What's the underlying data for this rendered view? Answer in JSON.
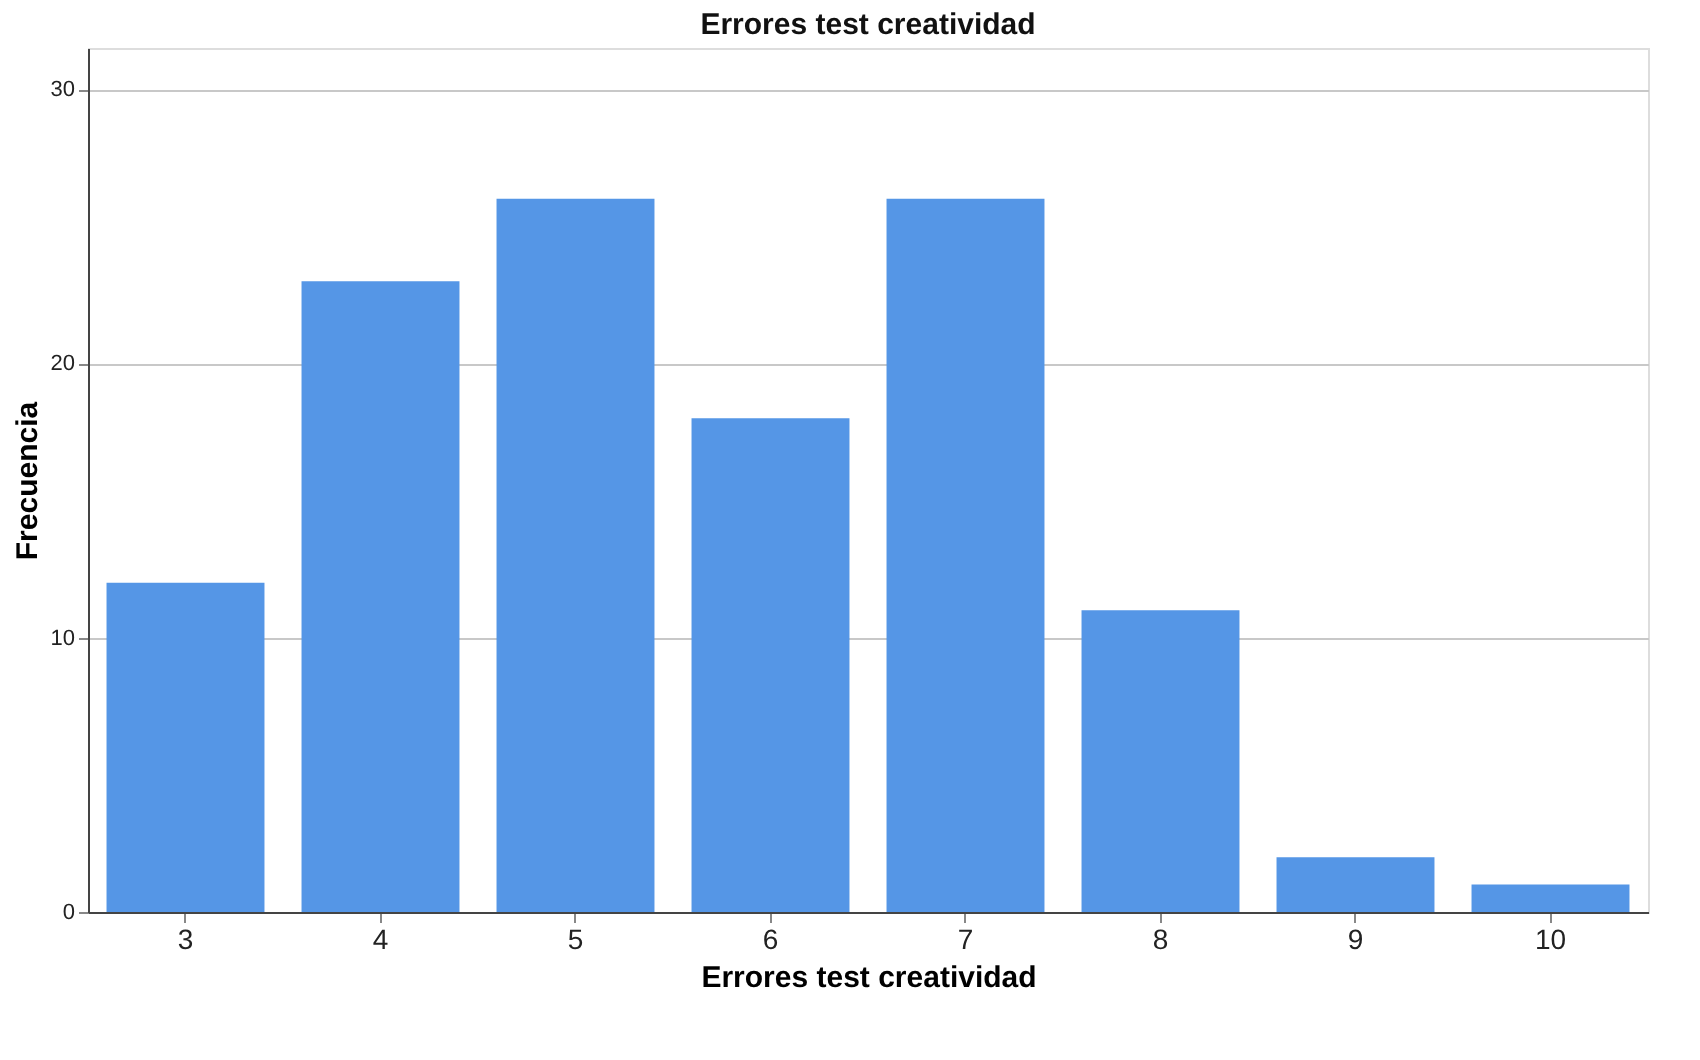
{
  "chart_data": {
    "type": "bar",
    "title": "Errores test creatividad",
    "xlabel": "Errores test creatividad",
    "ylabel": "Frecuencia",
    "categories": [
      "3",
      "4",
      "5",
      "6",
      "7",
      "8",
      "9",
      "10"
    ],
    "values": [
      12,
      23,
      26,
      18,
      26,
      11,
      2,
      1
    ],
    "color": "#5596e6",
    "ylim": [
      0,
      31.5
    ],
    "yticks": [
      0,
      10,
      20,
      30
    ],
    "grid": "y"
  }
}
